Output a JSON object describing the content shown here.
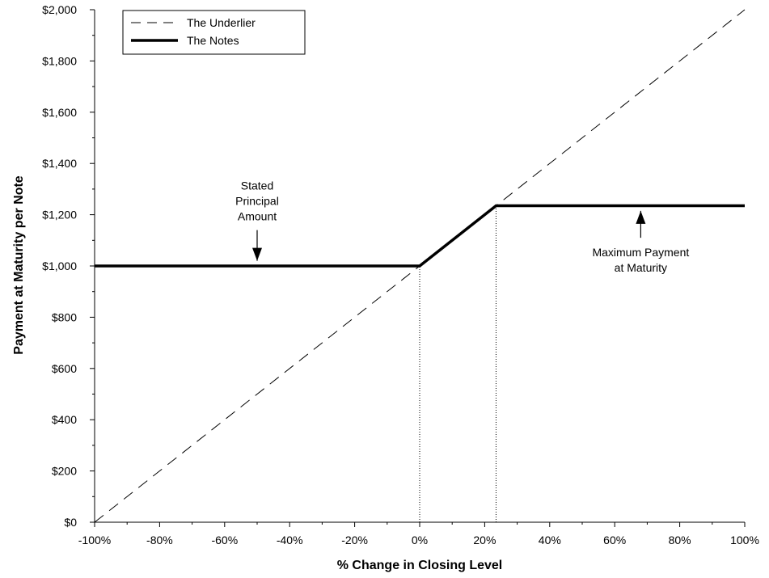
{
  "chart_data": {
    "type": "line",
    "xlabel": "% Change in Closing Level",
    "ylabel": "Payment at Maturity per Note",
    "xlim": [
      -100,
      100
    ],
    "ylim": [
      0,
      2000
    ],
    "x_ticks": [
      -100,
      -80,
      -60,
      -40,
      -20,
      0,
      20,
      40,
      60,
      80,
      100
    ],
    "x_tick_labels": [
      "-100%",
      "-80%",
      "-60%",
      "-40%",
      "-20%",
      "0%",
      "20%",
      "40%",
      "60%",
      "80%",
      "100%"
    ],
    "y_ticks": [
      0,
      200,
      400,
      600,
      800,
      1000,
      1200,
      1400,
      1600,
      1800,
      2000
    ],
    "y_tick_labels": [
      "$0",
      "$200",
      "$400",
      "$600",
      "$800",
      "$1,000",
      "$1,200",
      "$1,400",
      "$1,600",
      "$1,800",
      "$2,000"
    ],
    "series": [
      {
        "name": "The Underlier",
        "style": "dashed",
        "color": "#000000",
        "x": [
          -100,
          100
        ],
        "y": [
          0,
          2000
        ]
      },
      {
        "name": "The Notes",
        "style": "solid-thick",
        "color": "#000000",
        "x": [
          -100,
          0,
          23.5,
          100
        ],
        "y": [
          1000,
          1000,
          1235,
          1235
        ]
      }
    ],
    "reference_lines": [
      {
        "x": 0,
        "y_top": 1000,
        "style": "dotted"
      },
      {
        "x": 23.5,
        "y_top": 1235,
        "style": "dotted"
      }
    ],
    "annotations": [
      {
        "lines": [
          "Stated",
          "Principal",
          "Amount"
        ],
        "arrow": "down",
        "arrow_x": -50,
        "arrow_from_y": 1140,
        "arrow_to_y": 1020
      },
      {
        "lines": [
          "Maximum Payment",
          "at Maturity"
        ],
        "arrow": "up",
        "arrow_x": 68,
        "arrow_from_y": 1110,
        "arrow_to_y": 1215
      }
    ],
    "legend": {
      "placement": "top-left",
      "entries": [
        "The Underlier",
        "The Notes"
      ]
    },
    "grid": false
  }
}
